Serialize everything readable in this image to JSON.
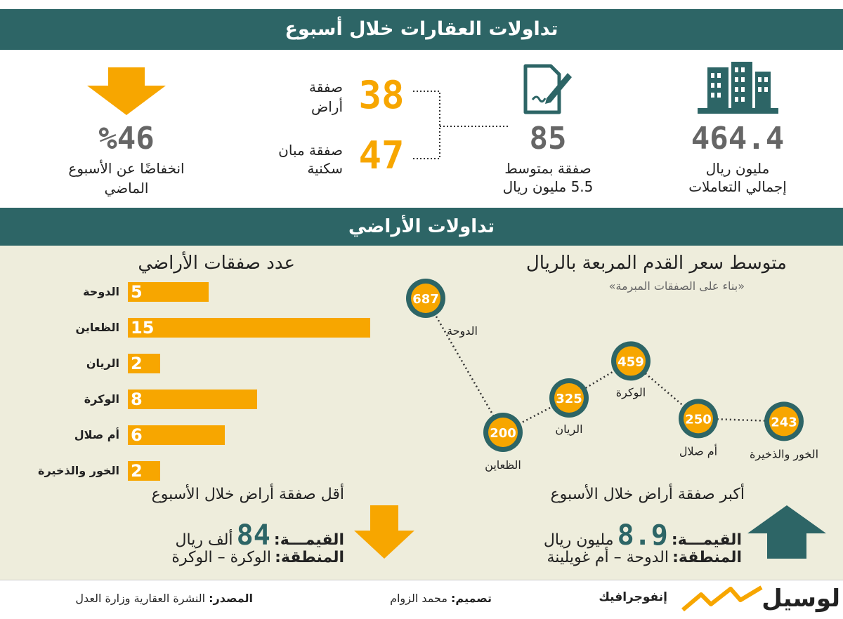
{
  "header": {
    "title": "تداولات العقارات خلال أسبوع"
  },
  "summary": {
    "total_value": "464.4",
    "total_unit": "مليون ريال",
    "total_label": "إجمالي التعاملات",
    "deals_count": "85",
    "deals_line1": "صفقة بمتوسط",
    "deals_line2": "5.5 مليون ريال",
    "land_count": "38",
    "land_line1": "صفقة",
    "land_line2": "أراض",
    "housing_count": "47",
    "housing_line1": "صفقة مبان",
    "housing_line2": "سكنية",
    "drop_value": "%46",
    "drop_line1": "انخفاضًا عن الأسبوع",
    "drop_line2": "الماضي"
  },
  "land_section": {
    "title": "تداولات الأراضي"
  },
  "chart_data": [
    {
      "type": "bar",
      "title": "عدد صفقات الأراضي",
      "categories": [
        "الدوحة",
        "الظعاين",
        "الريان",
        "الوكرة",
        "أم صلال",
        "الخور والذخيرة"
      ],
      "values": [
        5,
        15,
        2,
        8,
        6,
        2
      ],
      "colors": {
        "bar": "#f7a600"
      }
    },
    {
      "type": "line",
      "title": "متوسط سعر القدم المربعة بالريال",
      "subtitle": "«بناء على الصفقات المبرمة»",
      "categories": [
        "الدوحة",
        "الظعاين",
        "الريان",
        "الوكرة",
        "أم صلال",
        "الخور والذخيرة"
      ],
      "values": [
        687,
        200,
        325,
        459,
        250,
        243
      ],
      "colors": {
        "ring": "#2d6566",
        "fill": "#f7a600"
      }
    }
  ],
  "smallest": {
    "title": "أقل صفقة أراض خلال الأسبوع",
    "value_label": "القيمـــة:",
    "value": "84",
    "value_unit": "ألف ريال",
    "area_label": "المنطقة:",
    "area": "الوكرة – الوكرة"
  },
  "largest": {
    "title": "أكبر صفقة أراض خلال الأسبوع",
    "value_label": "القيمـــة:",
    "value": "8.9",
    "value_unit": "مليون ريال",
    "area_label": "المنطقة:",
    "area": "الدوحة – أم غويلينة"
  },
  "footer": {
    "brand": "لوسيل",
    "infographic": "إنفوجرافيك",
    "design_label": "تصميم:",
    "design_name": "محمد الزوام",
    "source_label": "المصدر:",
    "source_text": "النشرة العقارية وزارة العدل"
  },
  "icons": [
    "buildings-icon",
    "contract-pen-icon",
    "arrow-down-icon",
    "arrow-up-icon",
    "brand-logo"
  ]
}
